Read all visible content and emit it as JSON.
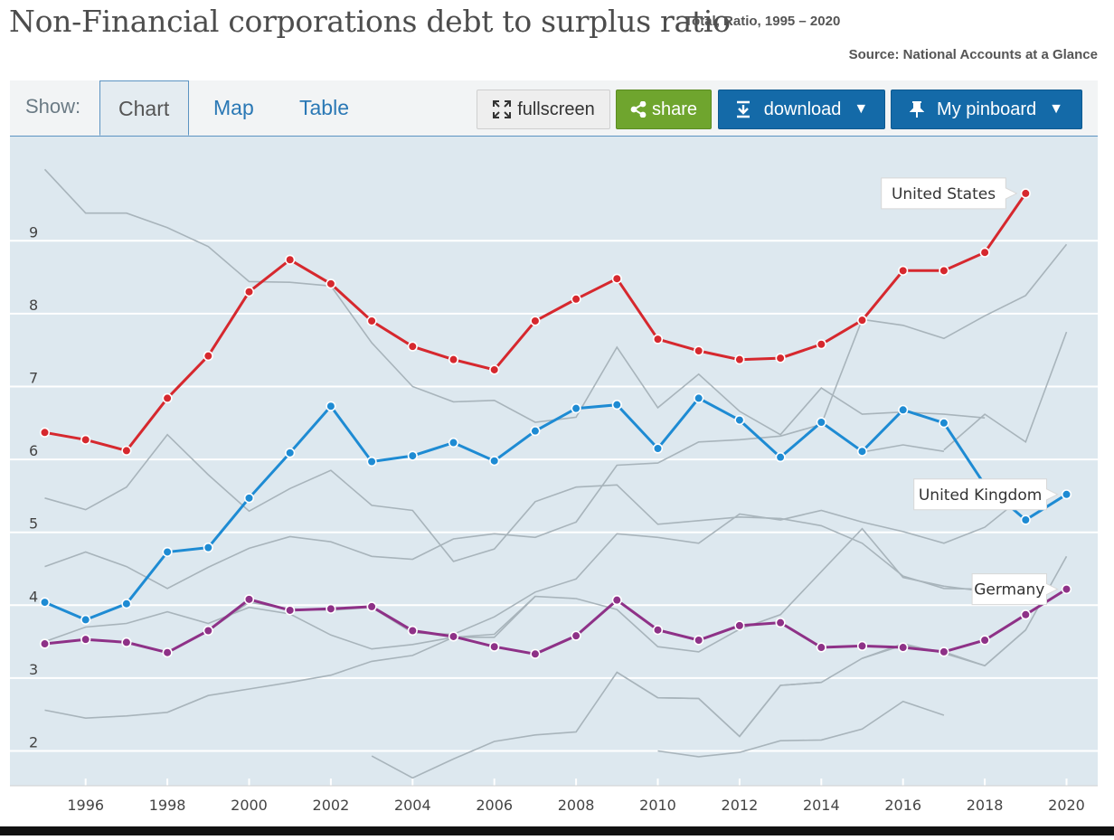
{
  "header": {
    "title": "Non-Financial corporations debt to surplus ratio",
    "subtitle": "Total, Ratio, 1995 – 2020",
    "source": "Source: National Accounts at a Glance"
  },
  "toolbar": {
    "show_label": "Show:",
    "tabs": [
      {
        "label": "Chart",
        "active": true
      },
      {
        "label": "Map",
        "active": false
      },
      {
        "label": "Table",
        "active": false
      }
    ],
    "fullscreen_label": "fullscreen",
    "share_label": "share",
    "download_label": "download",
    "pinboard_label": "My pinboard"
  },
  "colors": {
    "plot_bg": "#dde8ef",
    "united_states": "#d6282e",
    "united_kingdom": "#1e8bd3",
    "germany": "#8e3187",
    "other": "#a8b4bb"
  },
  "chart_data": {
    "type": "line",
    "title": "Non-Financial corporations debt to surplus ratio",
    "xlim": [
      1994.6,
      2020.4
    ],
    "ylim": [
      1.5,
      10.2
    ],
    "y_ticks": [
      2,
      3,
      4,
      5,
      6,
      7,
      8,
      9
    ],
    "x_ticks": [
      1996,
      1998,
      2000,
      2002,
      2004,
      2006,
      2008,
      2010,
      2012,
      2014,
      2016,
      2018,
      2020
    ],
    "grid": true,
    "highlighted_series": [
      {
        "name": "United States",
        "color": "#d6282e",
        "x": [
          1995,
          1996,
          1997,
          1998,
          1999,
          2000,
          2001,
          2002,
          2003,
          2004,
          2005,
          2006,
          2007,
          2008,
          2009,
          2010,
          2011,
          2012,
          2013,
          2014,
          2015,
          2016,
          2017,
          2018,
          2019
        ],
        "values": [
          6.37,
          6.27,
          6.12,
          6.84,
          7.42,
          8.3,
          8.74,
          8.41,
          7.9,
          7.55,
          7.37,
          7.23,
          7.9,
          8.2,
          8.48,
          7.65,
          7.49,
          7.37,
          7.39,
          7.58,
          7.91,
          8.59,
          8.59,
          8.84,
          9.65
        ]
      },
      {
        "name": "United Kingdom",
        "color": "#1e8bd3",
        "x": [
          1995,
          1996,
          1997,
          1998,
          1999,
          2000,
          2001,
          2002,
          2003,
          2004,
          2005,
          2006,
          2007,
          2008,
          2009,
          2010,
          2011,
          2012,
          2013,
          2014,
          2015,
          2016,
          2017,
          2018,
          2019,
          2020
        ],
        "values": [
          4.04,
          3.8,
          4.02,
          4.73,
          4.79,
          5.47,
          6.09,
          6.73,
          5.97,
          6.05,
          6.23,
          5.98,
          6.39,
          6.7,
          6.75,
          6.15,
          6.84,
          6.54,
          6.03,
          6.51,
          6.11,
          6.68,
          6.5,
          5.65,
          5.17,
          5.52
        ]
      },
      {
        "name": "Germany",
        "color": "#8e3187",
        "x": [
          1995,
          1996,
          1997,
          1998,
          1999,
          2000,
          2001,
          2002,
          2003,
          2004,
          2005,
          2006,
          2007,
          2008,
          2009,
          2010,
          2011,
          2012,
          2013,
          2014,
          2015,
          2016,
          2017,
          2018,
          2019,
          2020
        ],
        "values": [
          3.47,
          3.53,
          3.49,
          3.35,
          3.65,
          4.08,
          3.93,
          3.95,
          3.98,
          3.65,
          3.57,
          3.43,
          3.33,
          3.58,
          4.07,
          3.66,
          3.52,
          3.72,
          3.76,
          3.42,
          3.44,
          3.42,
          3.36,
          3.52,
          3.87,
          4.22
        ]
      }
    ],
    "other_series": [
      {
        "x": [
          1995,
          1996,
          1997,
          1998,
          1999,
          2000,
          2001,
          2002,
          2003,
          2004,
          2005,
          2006,
          2007,
          2008,
          2009,
          2010,
          2011,
          2012,
          2013,
          2014,
          2015,
          2016,
          2017,
          2018,
          2019,
          2020
        ],
        "values": [
          9.98,
          9.38,
          9.38,
          9.18,
          8.92,
          8.44,
          8.43,
          8.38,
          7.6,
          7.0,
          6.79,
          6.81,
          6.51,
          6.58,
          7.54,
          6.71,
          7.17,
          6.66,
          6.34,
          6.98,
          6.62,
          6.65,
          6.62,
          6.57,
          null,
          null
        ]
      },
      {
        "x": [
          1995,
          1996,
          1997,
          1998,
          1999,
          2000,
          2001,
          2002,
          2003,
          2004,
          2005,
          2006,
          2007,
          2008,
          2009,
          2010,
          2011,
          2012,
          2013,
          2014,
          2015,
          2016,
          2017,
          2018,
          2019,
          2020
        ],
        "values": [
          5.47,
          5.31,
          5.62,
          6.34,
          5.79,
          5.29,
          5.6,
          5.85,
          5.37,
          5.3,
          4.6,
          4.77,
          5.42,
          5.62,
          5.65,
          5.11,
          5.16,
          5.21,
          5.19,
          5.09,
          4.85,
          4.4,
          4.23,
          4.22,
          4.29,
          null
        ]
      },
      {
        "x": [
          1995,
          1996,
          1997,
          1998,
          1999,
          2000,
          2001,
          2002,
          2003,
          2004,
          2005,
          2006,
          2007,
          2008,
          2009,
          2010,
          2011,
          2012,
          2013,
          2014,
          2015,
          2016,
          2017,
          2018,
          2019,
          2020
        ],
        "values": [
          4.53,
          4.73,
          4.53,
          4.23,
          4.52,
          4.78,
          4.94,
          4.87,
          4.67,
          4.63,
          4.91,
          4.98,
          4.93,
          5.14,
          5.92,
          5.95,
          6.24,
          6.27,
          6.32,
          6.48,
          7.92,
          7.84,
          7.66,
          7.97,
          8.25,
          8.95
        ]
      },
      {
        "x": [
          1995,
          1996,
          1997,
          1998,
          1999,
          2000,
          2001,
          2002,
          2003,
          2004,
          2005,
          2006,
          2007,
          2008,
          2009,
          2010,
          2011,
          2012,
          2013,
          2014,
          2015,
          2016,
          2017,
          2018,
          2019,
          2020
        ],
        "values": [
          3.5,
          3.7,
          3.75,
          3.91,
          3.75,
          3.97,
          3.88,
          3.59,
          3.4,
          3.46,
          3.56,
          3.6,
          4.12,
          4.09,
          3.94,
          3.43,
          3.36,
          3.67,
          3.87,
          4.46,
          5.05,
          4.38,
          4.26,
          4.19,
          4.03,
          null
        ]
      },
      {
        "x": [
          1995,
          1996,
          1997,
          1998,
          1999,
          2000,
          2001,
          2002,
          2003,
          2004,
          2005,
          2006,
          2007,
          2008,
          2009,
          2010,
          2011,
          2012,
          2013,
          2014,
          2015,
          2016,
          2017,
          2018,
          2019,
          2020
        ],
        "values": [
          3.48,
          3.52,
          3.5,
          3.35,
          3.65,
          4.04,
          3.95,
          3.93,
          3.97,
          3.62,
          3.6,
          3.84,
          4.18,
          4.36,
          4.98,
          4.93,
          4.85,
          5.25,
          5.17,
          5.3,
          5.14,
          5.01,
          4.85,
          5.07,
          5.52,
          null
        ]
      },
      {
        "x": [
          1995,
          1996,
          1997,
          1998,
          1999,
          2000,
          2001,
          2002,
          2003,
          2004,
          2005,
          2006,
          2007,
          2008,
          2009,
          2010,
          2011,
          2012,
          2013,
          2014,
          2015,
          2016,
          2017,
          2018,
          2019,
          2020
        ],
        "values": [
          2.56,
          2.45,
          2.48,
          2.53,
          2.76,
          2.85,
          2.94,
          3.04,
          3.23,
          3.31,
          3.56,
          3.56,
          4.12,
          null,
          null,
          null,
          null,
          null,
          null,
          null,
          3.27,
          3.45,
          3.36,
          3.17,
          3.66,
          null
        ]
      },
      {
        "x": [
          1995,
          1996,
          1997,
          1998,
          1999,
          2000,
          2001,
          2002,
          2003,
          2004,
          2005,
          2006,
          2007,
          2008,
          2009,
          2010,
          2011,
          2012,
          2013,
          2014,
          2015,
          2016,
          2017,
          2018,
          2019,
          2020
        ],
        "values": [
          null,
          null,
          null,
          null,
          null,
          null,
          null,
          null,
          null,
          null,
          null,
          null,
          null,
          null,
          3.08,
          2.73,
          2.72,
          2.2,
          2.9,
          2.94,
          3.27,
          3.47,
          3.34,
          3.17,
          3.66,
          4.67
        ]
      },
      {
        "x": [
          1995,
          1996,
          1997,
          1998,
          1999,
          2000,
          2001,
          2002,
          2003,
          2004,
          2005,
          2006,
          2007,
          2008,
          2009,
          2010,
          2011,
          2012,
          2013,
          2014,
          2015,
          2016,
          2017,
          2018,
          2019,
          2020
        ],
        "values": [
          null,
          null,
          null,
          null,
          null,
          null,
          null,
          null,
          1.93,
          1.63,
          1.89,
          2.13,
          2.22,
          2.26,
          3.08,
          2.73,
          2.72,
          2.2,
          2.9,
          2.94,
          null,
          null,
          null,
          null,
          null,
          null
        ]
      },
      {
        "x": [
          2010,
          2011,
          2012,
          2013,
          2014,
          2015,
          2016,
          2017
        ],
        "values": [
          2.0,
          1.92,
          1.98,
          2.14,
          2.15,
          2.3,
          2.68,
          2.49
        ]
      },
      {
        "x": [
          2017,
          2018,
          2019,
          2020
        ],
        "values": [
          6.13,
          6.62,
          6.24,
          7.75
        ]
      },
      {
        "x": [
          2015,
          2016,
          2017
        ],
        "values": [
          6.1,
          6.2,
          6.11
        ]
      }
    ]
  }
}
